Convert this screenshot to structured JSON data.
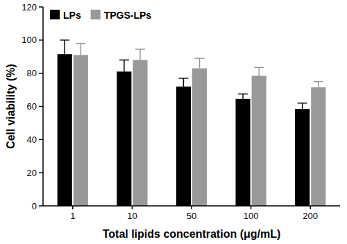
{
  "chart_data": {
    "type": "bar",
    "x_label": "Total lipids concentration (μg/mL)",
    "y_label": "Cell viability (%)",
    "categories": [
      "1",
      "10",
      "50",
      "100",
      "200"
    ],
    "series": [
      {
        "name": "LPs",
        "color": "#000000",
        "values": [
          91.5,
          81,
          72,
          64.5,
          58.5
        ],
        "errors": [
          8.5,
          7,
          5,
          3,
          3.5
        ]
      },
      {
        "name": "TPGS-LPs",
        "color": "#999999",
        "values": [
          91,
          88,
          83,
          78.5,
          71.5
        ],
        "errors": [
          7,
          6.5,
          6,
          5,
          3.5
        ]
      }
    ],
    "ylim": [
      0,
      120
    ],
    "yticks": [
      0,
      20,
      40,
      60,
      80,
      100,
      120
    ],
    "legend": "top-left",
    "grid": false
  }
}
